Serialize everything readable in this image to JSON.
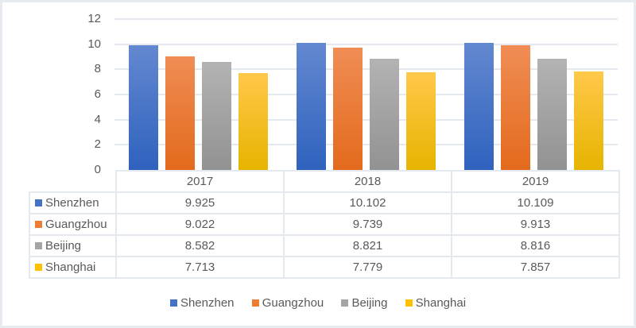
{
  "chart_data": {
    "type": "bar",
    "title": "",
    "xlabel": "",
    "ylabel": "",
    "ylim": [
      0,
      12
    ],
    "yticks": [
      0,
      2,
      4,
      6,
      8,
      10,
      12
    ],
    "categories": [
      "2017",
      "2018",
      "2019"
    ],
    "series": [
      {
        "name": "Shenzhen",
        "color": "#4472c4",
        "values": [
          9.925,
          10.102,
          10.109
        ]
      },
      {
        "name": "Guangzhou",
        "color": "#ed7d31",
        "values": [
          9.022,
          9.739,
          9.913
        ]
      },
      {
        "name": "Beijing",
        "color": "#a5a5a5",
        "values": [
          8.582,
          8.821,
          8.816
        ]
      },
      {
        "name": "Shanghai",
        "color": "#ffc000",
        "values": [
          7.713,
          7.779,
          7.857
        ]
      }
    ],
    "data_table": true,
    "legend_position": "bottom",
    "grid": true
  },
  "table": {
    "header": [
      "2017",
      "2018",
      "2019"
    ],
    "rows": [
      {
        "label": "Shenzhen",
        "values": [
          "9.925",
          "10.102",
          "10.109"
        ]
      },
      {
        "label": "Guangzhou",
        "values": [
          "9.022",
          "9.739",
          "9.913"
        ]
      },
      {
        "label": "Beijing",
        "values": [
          "8.582",
          "8.821",
          "8.816"
        ]
      },
      {
        "label": "Shanghai",
        "values": [
          "7.713",
          "7.779",
          "7.857"
        ]
      }
    ]
  },
  "yaxis": {
    "ticks": [
      "12",
      "10",
      "8",
      "6",
      "4",
      "2",
      "0"
    ]
  },
  "legend": [
    "Shenzhen",
    "Guangzhou",
    "Beijing",
    "Shanghai"
  ]
}
